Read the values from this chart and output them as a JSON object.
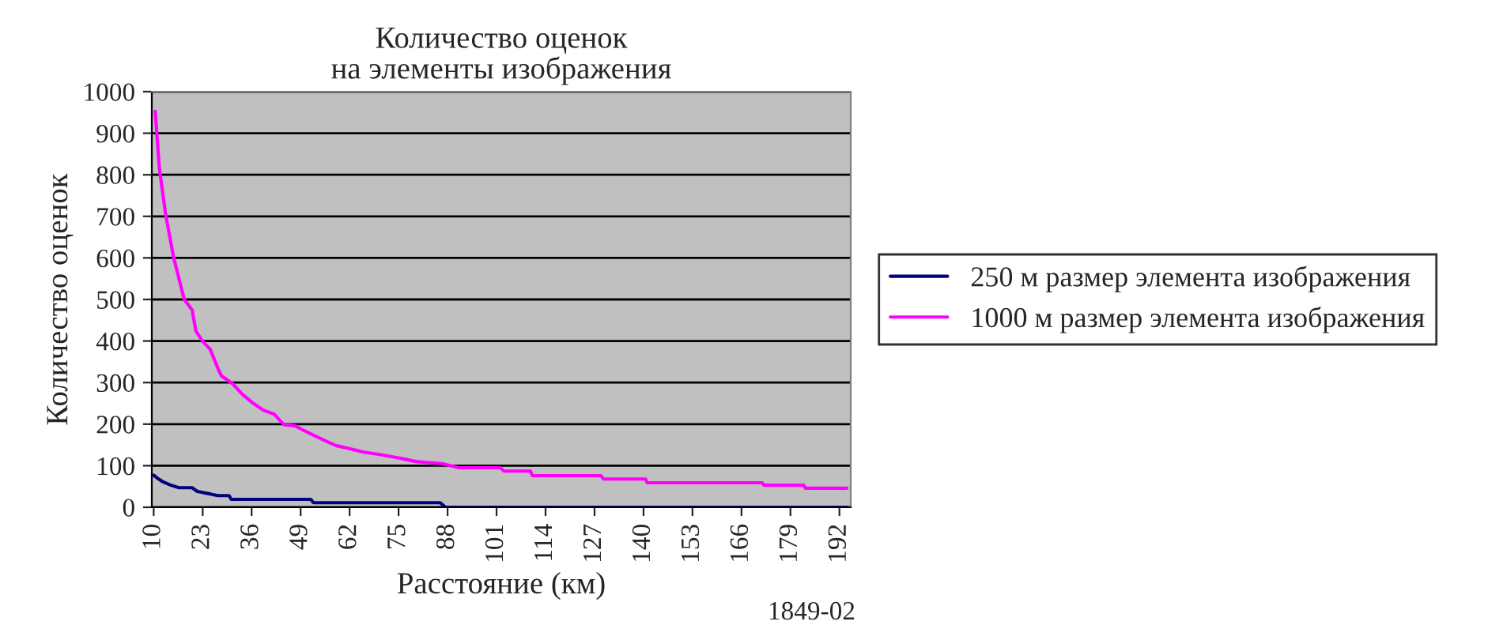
{
  "chart_data": {
    "type": "line",
    "title": "Количество оценок\nна элементы изображения",
    "xlabel": "Расстояние (км)",
    "ylabel": "Количество оценок",
    "annotations": [
      "1849-02"
    ],
    "xlim": [
      9.5,
      195
    ],
    "xticks": [
      10,
      23,
      36,
      49,
      62,
      75,
      88,
      101,
      114,
      127,
      140,
      153,
      166,
      179,
      192
    ],
    "ylim": [
      0,
      1000
    ],
    "yticks": [
      0,
      100,
      200,
      300,
      400,
      500,
      600,
      700,
      800,
      900,
      1000
    ],
    "grid": "y",
    "legend": "right",
    "series": [
      {
        "name": "250 м размер элемента изображения",
        "color": "#000080",
        "x": [
          10,
          11,
          12.5,
          14.6,
          16.7,
          20.2,
          21.6,
          25,
          27,
          30,
          30.6,
          51.7,
          52.4,
          86,
          87.5,
          194
        ],
        "values": [
          77,
          70,
          61,
          53,
          47,
          47,
          38,
          32,
          28,
          28,
          19,
          19,
          11,
          11,
          0,
          0
        ]
      },
      {
        "name": "1000 м размер элемента изображения",
        "color": "#ff00ff",
        "x": [
          10.4,
          11.5,
          13.2,
          15.3,
          18.1,
          20.2,
          21.2,
          23,
          25,
          27,
          28,
          31,
          33.5,
          36,
          39,
          42,
          44.5,
          47.5,
          50,
          53,
          56,
          58.5,
          61.5,
          65.5,
          70,
          75.5,
          79.5,
          86.5,
          91,
          102,
          103,
          110,
          110.5,
          128.7,
          129.4,
          140.5,
          141,
          171.5,
          172,
          182.5,
          183,
          194
        ],
        "values": [
          953,
          816,
          703,
          601,
          500,
          475,
          424,
          399,
          380,
          335,
          316,
          297,
          272,
          253,
          234,
          224,
          199,
          196,
          184,
          171,
          158,
          148,
          142,
          133,
          127,
          118,
          110,
          105,
          95,
          95,
          87,
          87,
          76,
          76,
          68,
          68,
          59,
          59,
          53,
          53,
          46,
          46
        ]
      }
    ]
  }
}
